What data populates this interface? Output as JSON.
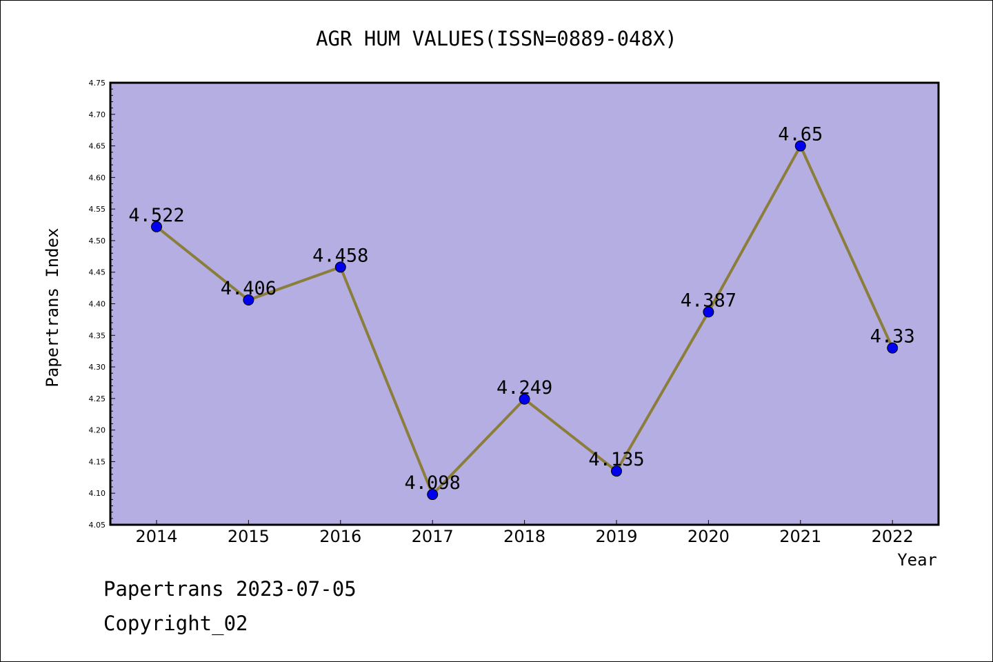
{
  "chart_data": {
    "type": "line",
    "title": "AGR HUM VALUES(ISSN=0889-048X)",
    "xlabel": "Year",
    "ylabel": "Papertrans Index",
    "categories": [
      "2014",
      "2015",
      "2016",
      "2017",
      "2018",
      "2019",
      "2020",
      "2021",
      "2022"
    ],
    "series": [
      {
        "values": [
          4.522,
          4.406,
          4.458,
          4.098,
          4.249,
          4.135,
          4.387,
          4.65,
          4.33
        ],
        "labels": [
          "4.522",
          "4.406",
          "4.458",
          "4.098",
          "4.249",
          "4.135",
          "4.387",
          "4.65",
          "4.33"
        ]
      }
    ],
    "ylim": [
      4.05,
      4.75
    ],
    "yticks": [
      "4.05",
      "4.10",
      "4.15",
      "4.20",
      "4.25",
      "4.30",
      "4.35",
      "4.40",
      "4.45",
      "4.50",
      "4.55",
      "4.60",
      "4.65",
      "4.70",
      "4.75"
    ],
    "grid": false,
    "colors": {
      "plot_background": "#b5aee2",
      "line": "#8b7d3a",
      "marker": "#0000ee"
    }
  },
  "footer": {
    "line1": "Papertrans 2023-07-05",
    "line2": "Copyright_02"
  }
}
